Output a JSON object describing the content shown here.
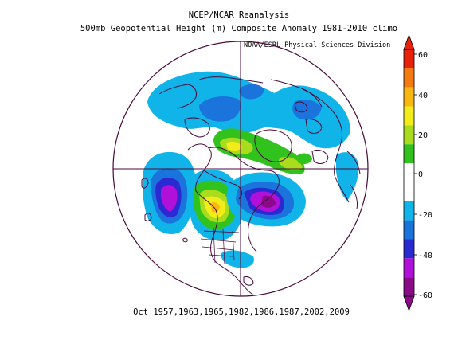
{
  "header": {
    "title_line1": "NCEP/NCAR Reanalysis",
    "title_line2": "500mb Geopotential Height (m) Composite Anomaly 1981-2010 climo",
    "credit": "NOAA/ESRL Physical Sciences Division"
  },
  "footer": {
    "caption": "Oct 1957,1963,1965,1982,1986,1987,2002,2009"
  },
  "colorbar": {
    "ticks": [
      "60",
      "40",
      "20",
      "0",
      "-20",
      "-40",
      "-60"
    ],
    "levels": [
      {
        "range": "50 to 60",
        "color": "#e8220a"
      },
      {
        "range": "40 to 50",
        "color": "#f47a12"
      },
      {
        "range": "30 to 40",
        "color": "#f8b810"
      },
      {
        "range": "20 to 30",
        "color": "#f2ec1a"
      },
      {
        "range": "10 to 20",
        "color": "#a8dc1c"
      },
      {
        "range": "0 to 10",
        "color": "#32c21e"
      },
      {
        "range": "-10 to 0",
        "color": "#ffffff"
      },
      {
        "range": "-20 to -10",
        "color": "#ffffff"
      },
      {
        "range": "-30 to -20",
        "color": "#10b4e8"
      },
      {
        "range": "-40 to -30",
        "color": "#1a74dc"
      },
      {
        "range": "-50 to -40",
        "color": "#2a2ad2"
      },
      {
        "range": "-60 to -50",
        "color": "#b010d8"
      },
      {
        "range": "< -60",
        "color": "#8a0a88"
      }
    ]
  },
  "map": {
    "projection": "north polar stereographic",
    "coastline_color": "#4a0a3c"
  }
}
